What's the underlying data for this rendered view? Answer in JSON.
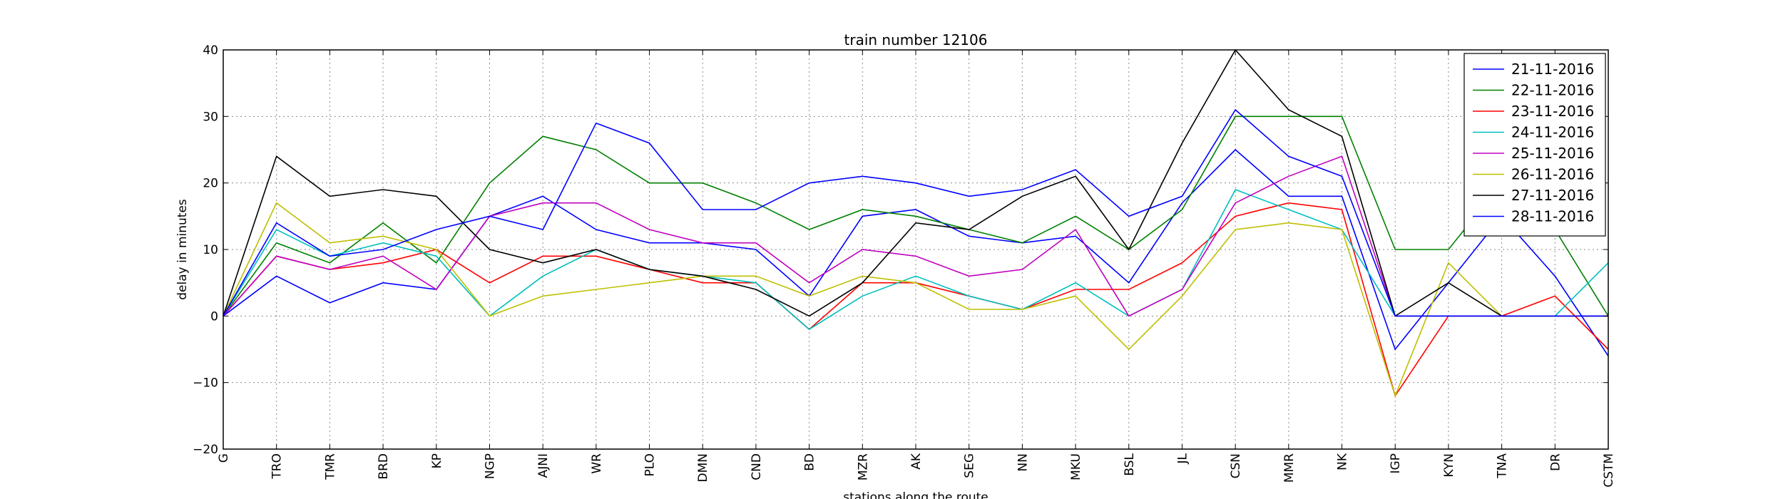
{
  "chart_data": {
    "type": "line",
    "title": "train number 12106",
    "xlabel": "stations along the route",
    "ylabel": "delay in minutes",
    "ylim": [
      -20,
      40
    ],
    "yticks": [
      -20,
      -10,
      0,
      10,
      20,
      30,
      40
    ],
    "ytick_labels": [
      "−20",
      "−10",
      "0",
      "10",
      "20",
      "30",
      "40"
    ],
    "grid": true,
    "legend_position": "top-right",
    "categories": [
      "G",
      "TRO",
      "TMR",
      "BRD",
      "KP",
      "NGP",
      "AJNI",
      "WR",
      "PLO",
      "DMN",
      "CND",
      "BD",
      "MZR",
      "AK",
      "SEG",
      "NN",
      "MKU",
      "BSL",
      "JL",
      "CSN",
      "MMR",
      "NK",
      "IGP",
      "KYN",
      "TNA",
      "DR",
      "CSTM"
    ],
    "series": [
      {
        "name": "21-11-2016",
        "color": "#0000ff",
        "values": [
          0,
          6,
          2,
          5,
          4,
          15,
          18,
          13,
          11,
          11,
          10,
          3,
          15,
          16,
          12,
          11,
          12,
          5,
          17,
          25,
          18,
          18,
          -5,
          5,
          15,
          6,
          -6
        ]
      },
      {
        "name": "22-11-2016",
        "color": "#008000",
        "values": [
          0,
          11,
          8,
          14,
          8,
          20,
          27,
          25,
          20,
          20,
          17,
          13,
          16,
          15,
          13,
          11,
          15,
          10,
          16,
          30,
          30,
          30,
          10,
          10,
          20,
          13,
          0
        ]
      },
      {
        "name": "23-11-2016",
        "color": "#ff0000",
        "values": [
          0,
          9,
          7,
          8,
          10,
          5,
          9,
          9,
          7,
          5,
          5,
          -2,
          5,
          5,
          3,
          1,
          4,
          4,
          8,
          15,
          17,
          16,
          -12,
          0,
          0,
          3,
          -5
        ]
      },
      {
        "name": "24-11-2016",
        "color": "#00bfbf",
        "values": [
          0,
          13,
          9,
          11,
          9,
          0,
          6,
          10,
          7,
          6,
          5,
          -2,
          3,
          6,
          3,
          1,
          5,
          0,
          4,
          19,
          16,
          13,
          0,
          0,
          0,
          0,
          8
        ]
      },
      {
        "name": "25-11-2016",
        "color": "#bf00bf",
        "values": [
          0,
          9,
          7,
          9,
          4,
          15,
          17,
          17,
          13,
          11,
          11,
          5,
          10,
          9,
          6,
          7,
          13,
          0,
          4,
          17,
          21,
          24,
          0,
          0,
          0,
          0,
          0
        ]
      },
      {
        "name": "26-11-2016",
        "color": "#bfbf00",
        "values": [
          0,
          17,
          11,
          12,
          10,
          0,
          3,
          4,
          5,
          6,
          6,
          3,
          6,
          5,
          1,
          1,
          3,
          -5,
          3,
          13,
          14,
          13,
          -12,
          8,
          0,
          0,
          0
        ]
      },
      {
        "name": "27-11-2016",
        "color": "#000000",
        "values": [
          0,
          24,
          18,
          19,
          18,
          10,
          8,
          10,
          7,
          6,
          4,
          0,
          5,
          14,
          13,
          18,
          21,
          10,
          26,
          40,
          31,
          27,
          0,
          5,
          0,
          0,
          0
        ]
      },
      {
        "name": "28-11-2016",
        "color": "#0000ff",
        "values": [
          0,
          14,
          9,
          10,
          13,
          15,
          13,
          29,
          26,
          16,
          16,
          20,
          21,
          20,
          18,
          19,
          22,
          15,
          18,
          31,
          24,
          21,
          0,
          0,
          0,
          0,
          0
        ]
      }
    ]
  }
}
